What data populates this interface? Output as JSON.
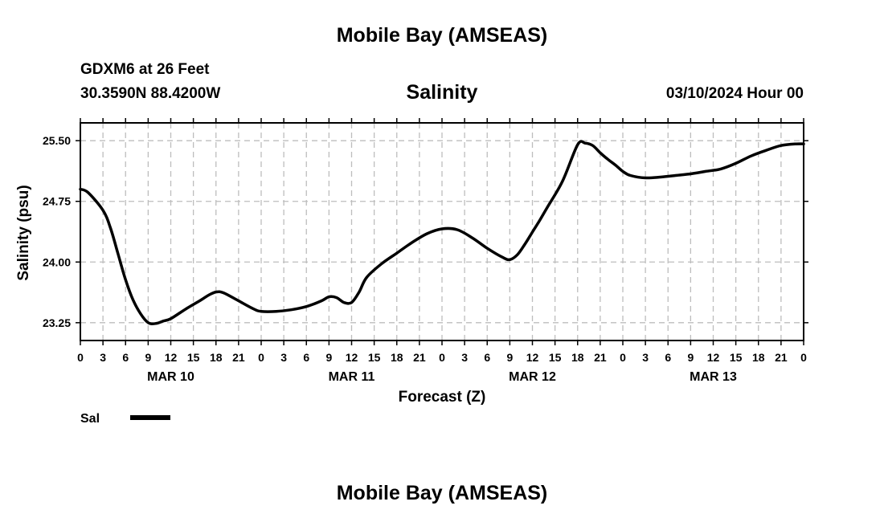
{
  "page": {
    "title": "Mobile Bay (AMSEAS)",
    "bottom_title": "Mobile Bay (AMSEAS)",
    "station": "GDXM6 at 26 Feet",
    "coords": "30.3590N  88.4200W",
    "chart_title": "Salinity",
    "date_label": "03/10/2024 Hour 00",
    "legend_label": "Sal"
  },
  "chart_data": {
    "type": "line",
    "title": "Salinity",
    "xlabel": "Forecast (Z)",
    "ylabel": "Salinity (psu)",
    "x_unit": "hours from 03/10/2024 00Z",
    "xlim": [
      0,
      96
    ],
    "ylim": [
      23.03,
      25.72
    ],
    "yticks": [
      23.25,
      24.0,
      24.75,
      25.5
    ],
    "ytick_labels": [
      "23.25",
      "24.00",
      "24.75",
      "25.50"
    ],
    "xticks": [
      0,
      3,
      6,
      9,
      12,
      15,
      18,
      21,
      24,
      27,
      30,
      33,
      36,
      39,
      42,
      45,
      48,
      51,
      54,
      57,
      60,
      63,
      66,
      69,
      72,
      75,
      78,
      81,
      84,
      87,
      90,
      93,
      96
    ],
    "xtick_labels": [
      "0",
      "3",
      "6",
      "9",
      "12",
      "15",
      "18",
      "21",
      "0",
      "3",
      "6",
      "9",
      "12",
      "15",
      "18",
      "21",
      "0",
      "3",
      "6",
      "9",
      "12",
      "15",
      "18",
      "21",
      "0",
      "3",
      "6",
      "9",
      "12",
      "15",
      "18",
      "21",
      "0"
    ],
    "day_labels": [
      {
        "label": "MAR 10",
        "at": 12
      },
      {
        "label": "MAR 11",
        "at": 36
      },
      {
        "label": "MAR 12",
        "at": 60
      },
      {
        "label": "MAR 13",
        "at": 84
      }
    ],
    "grid": true,
    "legend_position": "bottom-left",
    "line_color": "#000000",
    "series": [
      {
        "name": "Sal",
        "x": [
          0,
          1,
          3,
          4,
          5,
          6,
          7,
          8,
          9,
          10,
          11,
          12,
          14,
          16,
          17,
          18,
          19,
          21,
          23,
          24,
          26,
          28,
          30,
          32,
          33,
          34,
          35,
          36,
          37,
          38,
          40,
          42,
          44,
          46,
          48,
          50,
          52,
          54,
          56,
          57,
          58,
          59,
          60,
          61,
          62,
          64,
          66,
          67,
          68,
          69,
          70,
          71,
          72,
          73,
          75,
          77,
          79,
          81,
          83,
          85,
          87,
          89,
          91,
          93,
          95,
          96
        ],
        "y": [
          24.9,
          24.86,
          24.64,
          24.42,
          24.1,
          23.78,
          23.53,
          23.36,
          23.25,
          23.24,
          23.27,
          23.3,
          23.42,
          23.53,
          23.59,
          23.63,
          23.62,
          23.52,
          23.42,
          23.39,
          23.39,
          23.41,
          23.45,
          23.52,
          23.57,
          23.56,
          23.5,
          23.5,
          23.63,
          23.81,
          23.98,
          24.11,
          24.24,
          24.35,
          24.41,
          24.4,
          24.3,
          24.17,
          24.06,
          24.03,
          24.09,
          24.22,
          24.37,
          24.52,
          24.68,
          25.0,
          25.45,
          25.47,
          25.44,
          25.35,
          25.27,
          25.2,
          25.12,
          25.07,
          25.04,
          25.05,
          25.07,
          25.09,
          25.12,
          25.15,
          25.22,
          25.31,
          25.38,
          25.44,
          25.46,
          25.46
        ]
      }
    ]
  }
}
